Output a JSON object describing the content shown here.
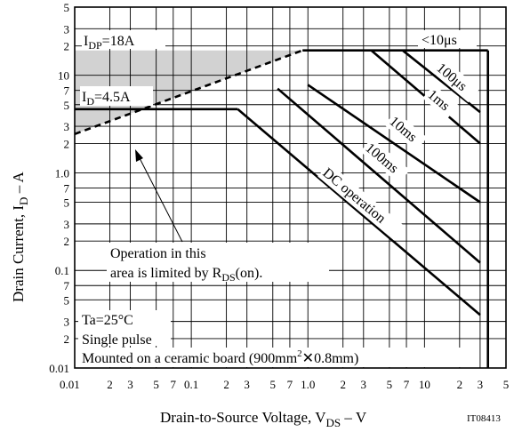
{
  "chart_data": {
    "type": "line",
    "x_scale": "log",
    "y_scale": "log",
    "xlim": [
      0.01,
      50
    ],
    "ylim": [
      0.01,
      50
    ],
    "grid": true,
    "xlabel": {
      "main": "Drain-to-Source Voltage, V",
      "sub": "DS",
      "tail": " – V"
    },
    "ylabel": {
      "main": "Drain Current, I",
      "sub": "D",
      "tail": " – A"
    },
    "figure_code": "IT08413",
    "x_ticks": [
      {
        "v": 0.01,
        "t": "0.01"
      },
      {
        "v": 0.02,
        "t": "2"
      },
      {
        "v": 0.03,
        "t": "3"
      },
      {
        "v": 0.05,
        "t": "5"
      },
      {
        "v": 0.07,
        "t": "7"
      },
      {
        "v": 0.1,
        "t": "0.1"
      },
      {
        "v": 0.2,
        "t": "2"
      },
      {
        "v": 0.3,
        "t": "3"
      },
      {
        "v": 0.5,
        "t": "5"
      },
      {
        "v": 0.7,
        "t": "7"
      },
      {
        "v": 1,
        "t": "1.0"
      },
      {
        "v": 2,
        "t": "2"
      },
      {
        "v": 3,
        "t": "3"
      },
      {
        "v": 5,
        "t": "5"
      },
      {
        "v": 7,
        "t": "7"
      },
      {
        "v": 10,
        "t": "10"
      },
      {
        "v": 20,
        "t": "2"
      },
      {
        "v": 30,
        "t": "3"
      },
      {
        "v": 50,
        "t": "5"
      }
    ],
    "y_ticks": [
      {
        "v": 0.01,
        "t": "0.01"
      },
      {
        "v": 0.02,
        "t": "2"
      },
      {
        "v": 0.03,
        "t": "3"
      },
      {
        "v": 0.05,
        "t": "5"
      },
      {
        "v": 0.07,
        "t": "7"
      },
      {
        "v": 0.1,
        "t": "0.1"
      },
      {
        "v": 0.2,
        "t": "2"
      },
      {
        "v": 0.3,
        "t": "3"
      },
      {
        "v": 0.5,
        "t": "5"
      },
      {
        "v": 0.7,
        "t": "7"
      },
      {
        "v": 1,
        "t": "1.0"
      },
      {
        "v": 2,
        "t": "2"
      },
      {
        "v": 3,
        "t": "3"
      },
      {
        "v": 5,
        "t": "5"
      },
      {
        "v": 7,
        "t": "7"
      },
      {
        "v": 10,
        "t": "10"
      },
      {
        "v": 20,
        "t": "2"
      },
      {
        "v": 30,
        "t": "3"
      },
      {
        "v": 50,
        "t": "5"
      }
    ],
    "series": [
      {
        "key": "ron-limit",
        "style": "dashed",
        "points": [
          [
            0.01,
            2.5
          ],
          [
            0.9,
            18
          ]
        ]
      },
      {
        "key": "idp-limit",
        "style": "solid",
        "points": [
          [
            0.9,
            18
          ],
          [
            35,
            18
          ]
        ]
      },
      {
        "key": "id-limit",
        "style": "solid",
        "points": [
          [
            0.01,
            4.5
          ],
          [
            0.25,
            4.5
          ]
        ]
      },
      {
        "key": "vdss-limit",
        "style": "solid",
        "points": [
          [
            35,
            18
          ],
          [
            35,
            0.01
          ]
        ]
      },
      {
        "key": "pulse-100us",
        "name": "100μs",
        "style": "solid",
        "points": [
          [
            6.5,
            18
          ],
          [
            30,
            4.2
          ]
        ]
      },
      {
        "key": "pulse-1ms",
        "name": "1ms",
        "style": "solid",
        "points": [
          [
            3.5,
            18
          ],
          [
            30,
            2.0
          ]
        ]
      },
      {
        "key": "pulse-10ms",
        "name": "10ms",
        "style": "solid",
        "points": [
          [
            1.0,
            8
          ],
          [
            30,
            0.5
          ]
        ]
      },
      {
        "key": "pulse-100ms",
        "name": "100ms",
        "style": "solid",
        "points": [
          [
            0.55,
            7.3
          ],
          [
            30,
            0.12
          ]
        ]
      },
      {
        "key": "dc",
        "name": "DC operation",
        "style": "solid",
        "points": [
          [
            0.25,
            4.5
          ],
          [
            30,
            0.035
          ]
        ]
      }
    ],
    "shaded_region": [
      [
        0.01,
        2.5
      ],
      [
        0.01,
        18
      ],
      [
        0.9,
        18
      ]
    ],
    "annotations": {
      "idp": {
        "main": "I",
        "sub": "DP",
        "tail": "=18A"
      },
      "id": {
        "main": "I",
        "sub": "D",
        "tail": "=4.5A"
      },
      "pulse_10us": "<10μs",
      "pulse_100us": "100μs",
      "pulse_1ms": "1ms",
      "pulse_10ms": "10ms",
      "pulse_100ms": "100ms",
      "dc": "DC operation",
      "region_line1": "Operation in this",
      "region_line2": {
        "main": "area is limited by R",
        "sub": "DS",
        "tail": "(on)."
      },
      "ta": "Ta=25°C",
      "single": "Single pulse",
      "mounted": {
        "main": "Mounted on a ceramic board (900mm",
        "sup": "2",
        "cross": "✕",
        "tail": "0.8mm)"
      }
    }
  }
}
